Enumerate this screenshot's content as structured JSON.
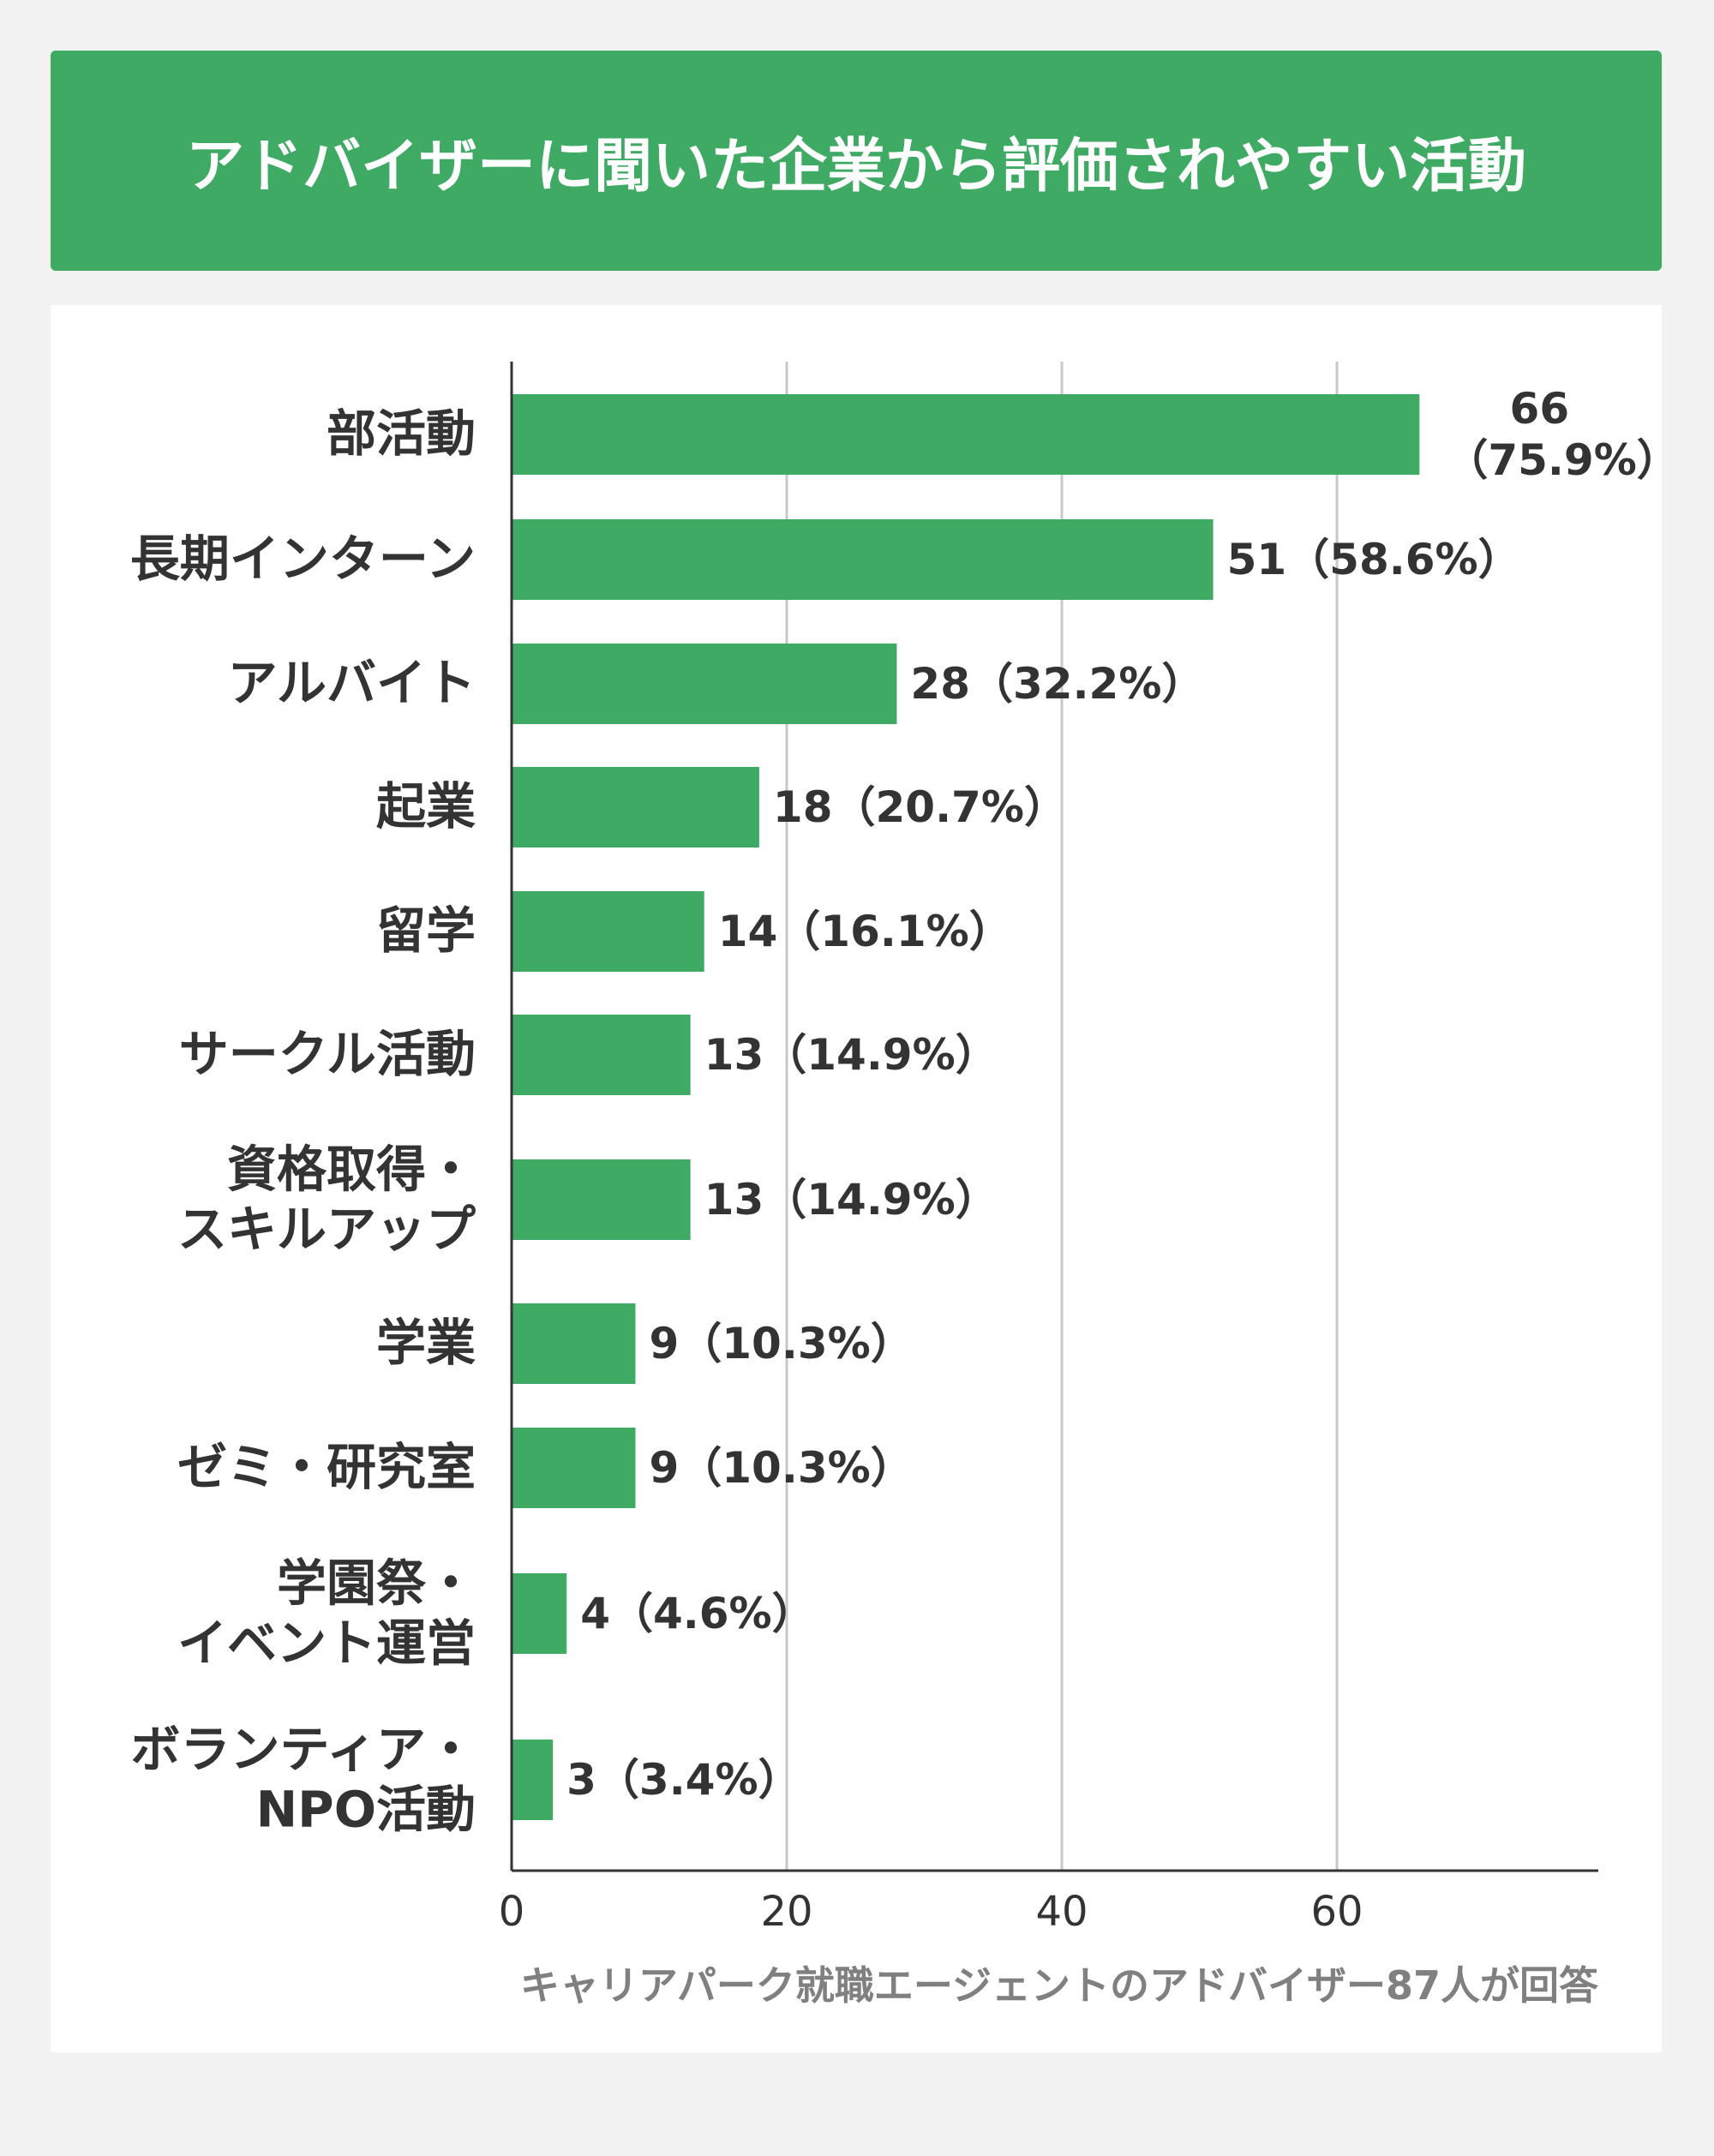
{
  "chart_data": {
    "type": "bar",
    "orientation": "horizontal",
    "title": "アドバイザーに聞いた企業から評価されやすい活動",
    "categories": [
      "部活動",
      "長期インターン",
      "アルバイト",
      "起業",
      "留学",
      "サークル活動",
      "資格取得・\nスキルアップ",
      "学業",
      "ゼミ・研究室",
      "学園祭・\nイベント運営",
      "ボランティア・\nNPO活動"
    ],
    "values": [
      66,
      51,
      28,
      18,
      14,
      13,
      13,
      9,
      9,
      4,
      3
    ],
    "value_labels": [
      "66\n（75.9%）",
      "51（58.6%）",
      "28（32.2%）",
      "18（20.7%）",
      "14（16.1%）",
      "13（14.9%）",
      "13（14.9%）",
      "9（10.3%）",
      "9（10.3%）",
      "4（4.6%）",
      "3（3.4%）"
    ],
    "color": "#3eaa64",
    "xlim": [
      0,
      79
    ],
    "xticks": [
      0,
      20,
      40,
      60
    ],
    "grid": true,
    "note": "キャリアパーク就職エージェントのアドバイザー87人が回答"
  }
}
